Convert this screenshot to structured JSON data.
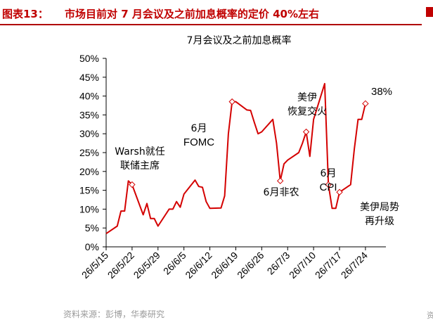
{
  "header": {
    "figure_number": "图表13：",
    "title": "市场目前对 7 月会议及之前加息概率的定价 40%左右"
  },
  "source": "资料来源：彭博，华泰研究",
  "edge_mark_bottom": "资",
  "colors": {
    "line": "#d40000",
    "marker_fill": "#ffffff",
    "title": "#c00000",
    "source": "#9a9a9a"
  },
  "chart_data": {
    "type": "line",
    "title": "7月会议及之前加息概率",
    "xlabel": "",
    "ylabel": "",
    "ylim": [
      0,
      50
    ],
    "y_ticks": [
      "0%",
      "5%",
      "10%",
      "15%",
      "20%",
      "25%",
      "30%",
      "35%",
      "40%",
      "45%",
      "50%"
    ],
    "x_ticks": [
      "26/5/15",
      "26/5/22",
      "26/5/29",
      "26/6/5",
      "26/6/12",
      "26/6/19",
      "26/6/26",
      "26/7/3",
      "26/7/10",
      "26/7/17",
      "26/7/24"
    ],
    "x_start": "2026-05-15",
    "series": [
      {
        "x": [
          "2026-05-15",
          "2026-05-18",
          "2026-05-19",
          "2026-05-20",
          "2026-05-21",
          "2026-05-22",
          "2026-05-25",
          "2026-05-26",
          "2026-05-27",
          "2026-05-28",
          "2026-05-29",
          "2026-06-01",
          "2026-06-02",
          "2026-06-03",
          "2026-06-04",
          "2026-06-05",
          "2026-06-08",
          "2026-06-09",
          "2026-06-10",
          "2026-06-11",
          "2026-06-12",
          "2026-06-15",
          "2026-06-16",
          "2026-06-17",
          "2026-06-18",
          "2026-06-19",
          "2026-06-22",
          "2026-06-23",
          "2026-06-24",
          "2026-06-25",
          "2026-06-26",
          "2026-06-29",
          "2026-06-30",
          "2026-07-01",
          "2026-07-02",
          "2026-07-03",
          "2026-07-06",
          "2026-07-07",
          "2026-07-08",
          "2026-07-09",
          "2026-07-10",
          "2026-07-13",
          "2026-07-14",
          "2026-07-15",
          "2026-07-16",
          "2026-07-17",
          "2026-07-20",
          "2026-07-21",
          "2026-07-22",
          "2026-07-23",
          "2026-07-24"
        ],
        "values": [
          3.5,
          5.5,
          9.5,
          9.5,
          17.5,
          16.5,
          8.5,
          11.5,
          7.5,
          7.5,
          5.5,
          10.0,
          10.0,
          12.0,
          10.5,
          14.0,
          17.7,
          16.0,
          15.8,
          12.0,
          10.2,
          10.3,
          13.5,
          30.0,
          38.5,
          38.5,
          36.3,
          36.2,
          33.0,
          30.0,
          30.5,
          33.8,
          27.5,
          17.5,
          22.0,
          23.0,
          25.0,
          27.5,
          30.5,
          24.0,
          33.8,
          43.3,
          16.5,
          10.2,
          10.2,
          14.5,
          16.5,
          26.0,
          33.8,
          33.8,
          38.0
        ],
        "highlighted": [
          5,
          24,
          33,
          38,
          42,
          45,
          50
        ]
      }
    ],
    "annotations": [
      {
        "lines": [
          "Warsh就任",
          "联储主席"
        ]
      },
      {
        "lines": [
          "6月",
          "FOMC"
        ]
      },
      {
        "lines": [
          "6月非农"
        ]
      },
      {
        "lines": [
          "美伊",
          "恢复交火"
        ]
      },
      {
        "lines": [
          "6月",
          "CPI"
        ]
      },
      {
        "lines": [
          "38%"
        ]
      },
      {
        "lines": [
          "美伊局势",
          "再升级"
        ]
      }
    ]
  }
}
